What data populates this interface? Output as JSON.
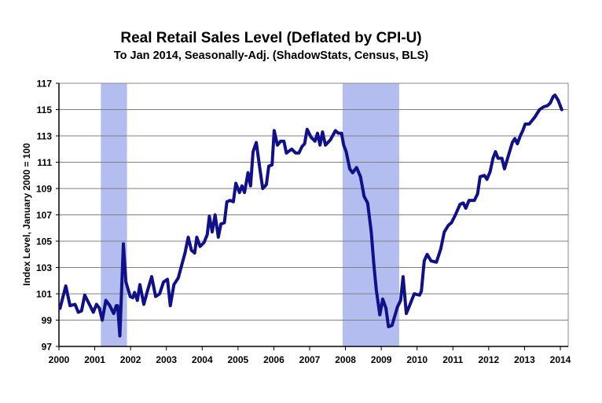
{
  "chart_data": {
    "type": "line",
    "title": "Real Retail Sales Level (Deflated by CPI-U)",
    "subtitle": "To Jan 2014, Seasonally-Adj. (ShadowStats, Census, BLS)",
    "xlabel": "",
    "ylabel": "Index Level, January 2000 = 100",
    "xlim": [
      2000,
      2014
    ],
    "ylim": [
      97,
      117
    ],
    "x_ticks": [
      "2000",
      "2001",
      "2002",
      "2003",
      "2004",
      "2005",
      "2006",
      "2007",
      "2008",
      "2009",
      "2010",
      "2011",
      "2012",
      "2013",
      "2014"
    ],
    "y_ticks": [
      "97",
      "99",
      "101",
      "103",
      "105",
      "107",
      "109",
      "111",
      "113",
      "115",
      "117"
    ],
    "grid": true,
    "legend": "none",
    "colors": {
      "line": "#10108a",
      "recession": "#b4bdf0",
      "grid": "#808080"
    },
    "recessions": [
      [
        2001.17,
        2001.9
      ],
      [
        2007.92,
        2009.5
      ]
    ],
    "series": [
      {
        "name": "Real Retail Sales Level",
        "points": [
          [
            2000.03,
            99.9
          ],
          [
            2000.19,
            101.6
          ],
          [
            2000.31,
            100.1
          ],
          [
            2000.45,
            100.2
          ],
          [
            2000.54,
            99.6
          ],
          [
            2000.63,
            99.7
          ],
          [
            2000.72,
            100.9
          ],
          [
            2000.87,
            100.1
          ],
          [
            2000.96,
            99.6
          ],
          [
            2001.05,
            100.2
          ],
          [
            2001.13,
            99.9
          ],
          [
            2001.21,
            99.0
          ],
          [
            2001.31,
            100.5
          ],
          [
            2001.42,
            100.1
          ],
          [
            2001.53,
            99.5
          ],
          [
            2001.6,
            100.1
          ],
          [
            2001.64,
            100.1
          ],
          [
            2001.7,
            97.8
          ],
          [
            2001.8,
            104.8
          ],
          [
            2001.87,
            101.9
          ],
          [
            2001.99,
            100.8
          ],
          [
            2002.06,
            100.7
          ],
          [
            2002.11,
            101.1
          ],
          [
            2002.19,
            100.5
          ],
          [
            2002.26,
            101.7
          ],
          [
            2002.37,
            100.2
          ],
          [
            2002.48,
            101.3
          ],
          [
            2002.59,
            102.3
          ],
          [
            2002.7,
            100.8
          ],
          [
            2002.81,
            101.0
          ],
          [
            2002.92,
            101.9
          ],
          [
            2003.03,
            102.1
          ],
          [
            2003.11,
            100.1
          ],
          [
            2003.21,
            101.7
          ],
          [
            2003.33,
            102.2
          ],
          [
            2003.43,
            103.2
          ],
          [
            2003.52,
            104.1
          ],
          [
            2003.61,
            105.3
          ],
          [
            2003.7,
            104.3
          ],
          [
            2003.79,
            104.1
          ],
          [
            2003.85,
            105.3
          ],
          [
            2003.94,
            104.6
          ],
          [
            2004.05,
            104.9
          ],
          [
            2004.14,
            105.5
          ],
          [
            2004.2,
            106.9
          ],
          [
            2004.28,
            105.7
          ],
          [
            2004.36,
            107.0
          ],
          [
            2004.45,
            105.3
          ],
          [
            2004.52,
            106.3
          ],
          [
            2004.62,
            106.4
          ],
          [
            2004.69,
            108.0
          ],
          [
            2004.78,
            108.1
          ],
          [
            2004.87,
            108.0
          ],
          [
            2004.94,
            109.4
          ],
          [
            2005.04,
            108.7
          ],
          [
            2005.11,
            109.2
          ],
          [
            2005.18,
            108.7
          ],
          [
            2005.28,
            110.2
          ],
          [
            2005.35,
            109.2
          ],
          [
            2005.42,
            111.8
          ],
          [
            2005.51,
            112.5
          ],
          [
            2005.6,
            110.7
          ],
          [
            2005.69,
            109.0
          ],
          [
            2005.79,
            109.3
          ],
          [
            2005.86,
            110.7
          ],
          [
            2005.95,
            110.8
          ],
          [
            2006.01,
            113.4
          ],
          [
            2006.1,
            112.3
          ],
          [
            2006.19,
            112.6
          ],
          [
            2006.28,
            112.6
          ],
          [
            2006.35,
            111.7
          ],
          [
            2006.5,
            112.0
          ],
          [
            2006.61,
            111.7
          ],
          [
            2006.7,
            111.7
          ],
          [
            2006.79,
            112.2
          ],
          [
            2006.86,
            112.4
          ],
          [
            2006.93,
            113.5
          ],
          [
            2007.04,
            112.9
          ],
          [
            2007.15,
            112.6
          ],
          [
            2007.22,
            113.2
          ],
          [
            2007.29,
            112.3
          ],
          [
            2007.36,
            113.3
          ],
          [
            2007.44,
            112.3
          ],
          [
            2007.58,
            112.7
          ],
          [
            2007.72,
            113.4
          ],
          [
            2007.8,
            113.2
          ],
          [
            2007.89,
            113.2
          ],
          [
            2007.95,
            112.3
          ],
          [
            2008.02,
            111.8
          ],
          [
            2008.12,
            110.5
          ],
          [
            2008.2,
            110.2
          ],
          [
            2008.31,
            110.6
          ],
          [
            2008.42,
            109.9
          ],
          [
            2008.52,
            108.4
          ],
          [
            2008.62,
            107.9
          ],
          [
            2008.72,
            105.7
          ],
          [
            2008.79,
            103.3
          ],
          [
            2008.86,
            101.3
          ],
          [
            2008.96,
            99.4
          ],
          [
            2009.04,
            100.6
          ],
          [
            2009.13,
            99.9
          ],
          [
            2009.2,
            98.5
          ],
          [
            2009.3,
            98.6
          ],
          [
            2009.45,
            100.0
          ],
          [
            2009.54,
            100.5
          ],
          [
            2009.61,
            102.3
          ],
          [
            2009.7,
            99.5
          ],
          [
            2009.79,
            100.1
          ],
          [
            2009.92,
            101.0
          ],
          [
            2010.07,
            100.9
          ],
          [
            2010.12,
            101.2
          ],
          [
            2010.2,
            103.5
          ],
          [
            2010.28,
            104.0
          ],
          [
            2010.39,
            103.5
          ],
          [
            2010.54,
            103.4
          ],
          [
            2010.66,
            104.4
          ],
          [
            2010.76,
            105.7
          ],
          [
            2010.87,
            106.2
          ],
          [
            2010.96,
            106.4
          ],
          [
            2011.07,
            107.0
          ],
          [
            2011.2,
            107.8
          ],
          [
            2011.29,
            107.9
          ],
          [
            2011.36,
            107.5
          ],
          [
            2011.45,
            108.1
          ],
          [
            2011.6,
            108.1
          ],
          [
            2011.69,
            108.6
          ],
          [
            2011.76,
            109.9
          ],
          [
            2011.88,
            110.0
          ],
          [
            2011.95,
            109.7
          ],
          [
            2012.04,
            110.3
          ],
          [
            2012.12,
            111.3
          ],
          [
            2012.19,
            111.8
          ],
          [
            2012.26,
            111.3
          ],
          [
            2012.37,
            111.3
          ],
          [
            2012.44,
            110.5
          ],
          [
            2012.55,
            111.5
          ],
          [
            2012.66,
            112.5
          ],
          [
            2012.73,
            112.8
          ],
          [
            2012.8,
            112.4
          ],
          [
            2012.88,
            113.0
          ],
          [
            2012.95,
            113.4
          ],
          [
            2013.02,
            113.9
          ],
          [
            2013.13,
            113.9
          ],
          [
            2013.28,
            114.4
          ],
          [
            2013.42,
            115.0
          ],
          [
            2013.53,
            115.2
          ],
          [
            2013.64,
            115.3
          ],
          [
            2013.72,
            115.5
          ],
          [
            2013.8,
            116.0
          ],
          [
            2013.85,
            116.1
          ],
          [
            2013.94,
            115.7
          ],
          [
            2014.04,
            115.0
          ]
        ]
      }
    ]
  }
}
